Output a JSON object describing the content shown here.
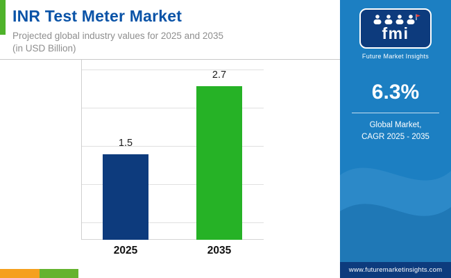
{
  "header": {
    "title": "INR Test Meter Market",
    "subtitle_line1": "Projected global industry values for 2025 and 2035",
    "subtitle_line2": "(in USD Billion)"
  },
  "chart_data": {
    "type": "bar",
    "title": "INR Test Meter Market",
    "subtitle": "Projected global industry values for 2025 and 2035 (in USD Billion)",
    "categories": [
      "2025",
      "2035"
    ],
    "values": [
      1.5,
      2.7
    ],
    "unit": "USD Billion",
    "ylim": [
      0,
      3
    ],
    "grid": true,
    "legend": false,
    "bar_colors": [
      "#0d3b7d",
      "#26b226"
    ]
  },
  "sidebar": {
    "logo_text": "fmi",
    "logo_caption": "Future Market Insights",
    "cagr_value": "6.3%",
    "cagr_line1": "Global Market,",
    "cagr_line2": "CAGR 2025 - 2035",
    "website": "www.futuremarketinsights.com"
  },
  "colors": {
    "title_blue": "#0a53a7",
    "sidebar_blue": "#1c7fc2",
    "navy": "#0d3b7d",
    "accent_green": "#4fb32b",
    "stripe_orange": "#f5a01e",
    "stripe_green": "#65b32e"
  }
}
